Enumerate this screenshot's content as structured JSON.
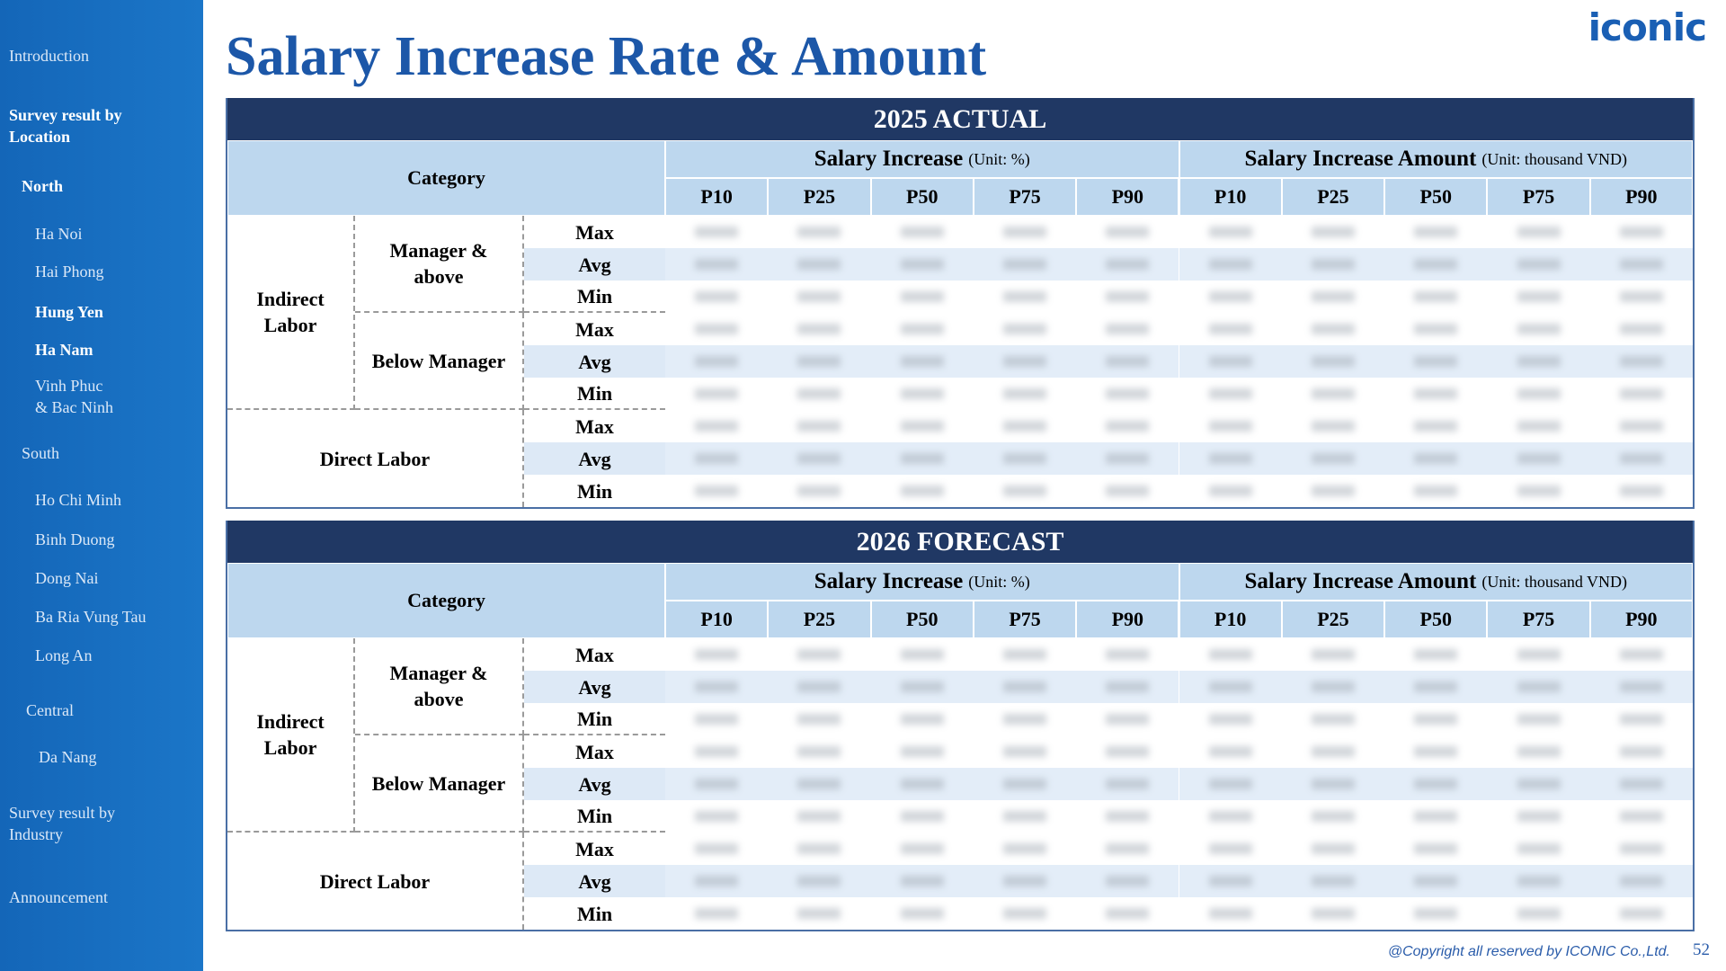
{
  "sidebar": [
    "Introduction",
    "Survey result by\nLocation",
    "North",
    "Ha Noi",
    "Hai Phong",
    "Hung Yen",
    "Ha Nam",
    "Vinh Phuc\n& Bac Ninh",
    "South",
    "Ho Chi Minh",
    "Binh Duong",
    "Dong Nai",
    "Ba Ria Vung Tau",
    "Long An",
    "Central",
    "Da Nang",
    "Survey result by\nIndustry",
    "Announcement"
  ],
  "title": "Salary Increase Rate & Amount",
  "logo": "iconic",
  "tables": [
    {
      "heading": "2025 ACTUAL",
      "category_label": "Category",
      "groups": [
        {
          "name": "Salary Increase",
          "unit": "(Unit: %)"
        },
        {
          "name": "Salary Increase Amount",
          "unit": "(Unit: thousand VND)"
        }
      ],
      "percentiles": [
        "P10",
        "P25",
        "P50",
        "P75",
        "P90"
      ],
      "rows": [
        {
          "label": "Indirect\nLabor",
          "subgroups": [
            {
              "label": "Manager &\nabove",
              "stats": [
                "Max",
                "Avg",
                "Min"
              ]
            },
            {
              "label": "Below Manager",
              "stats": [
                "Max",
                "Avg",
                "Min"
              ]
            }
          ]
        },
        {
          "label": "Direct Labor",
          "stats": [
            "Max",
            "Avg",
            "Min"
          ]
        }
      ]
    },
    {
      "heading": "2026 FORECAST",
      "category_label": "Category",
      "groups": [
        {
          "name": "Salary Increase",
          "unit": "(Unit: %)"
        },
        {
          "name": "Salary Increase Amount",
          "unit": "(Unit: thousand VND)"
        }
      ],
      "percentiles": [
        "P10",
        "P25",
        "P50",
        "P75",
        "P90"
      ],
      "rows": [
        {
          "label": "Indirect\nLabor",
          "subgroups": [
            {
              "label": "Manager &\nabove",
              "stats": [
                "Max",
                "Avg",
                "Min"
              ]
            },
            {
              "label": "Below Manager",
              "stats": [
                "Max",
                "Avg",
                "Min"
              ]
            }
          ]
        },
        {
          "label": "Direct Labor",
          "stats": [
            "Max",
            "Avg",
            "Min"
          ]
        }
      ]
    }
  ],
  "footer": "@Copyright all reserved by ICONIC Co.,Ltd.",
  "page_number": "52"
}
